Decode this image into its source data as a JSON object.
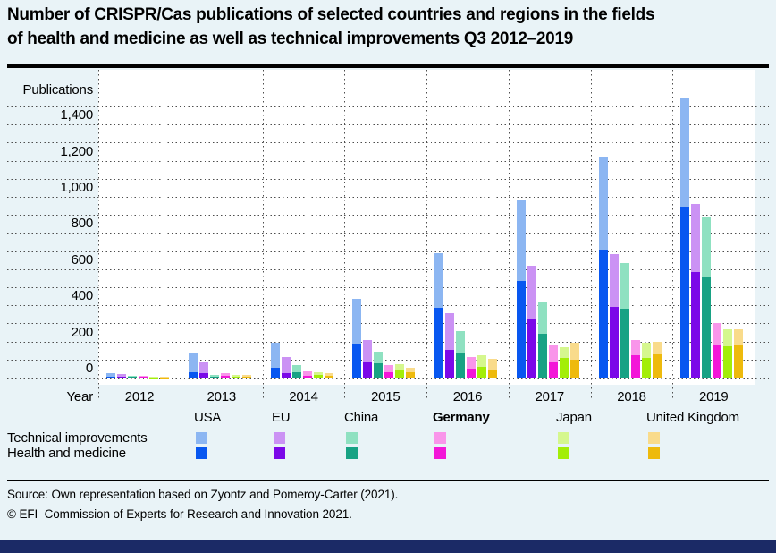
{
  "header": {
    "title_line1": "Number of CRISPR/Cas publications of selected countries and regions in the fields",
    "title_line2": "of health and medicine as well as technical improvements Q3 2012–2019"
  },
  "chart_data": {
    "type": "bar",
    "stacked": true,
    "title": "Number of CRISPR/Cas publications of selected countries and regions in the fields of health and medicine as well as technical improvements Q3 2012–2019",
    "xlabel": "Year",
    "ylabel": "Publications",
    "ylim": [
      0,
      1500
    ],
    "grid_interval": 100,
    "ytick_interval": 200,
    "grid": "dotted",
    "ytick_labels": [
      "0",
      "200",
      "400",
      "600",
      "800",
      "1,000",
      "1,200",
      "1,400"
    ],
    "categories": [
      "2012",
      "2013",
      "2014",
      "2015",
      "2016",
      "2017",
      "2018",
      "2019"
    ],
    "series_labels": {
      "technical": "Technical improvements",
      "health": "Health and medicine"
    },
    "groups": [
      {
        "name": "USA",
        "bold": false,
        "tech_color": "#8cb6f2",
        "health_color": "#0857f0",
        "health": [
          7,
          30,
          55,
          190,
          385,
          535,
          710,
          945
        ],
        "technical": [
          20,
          105,
          140,
          245,
          305,
          445,
          515,
          600
        ]
      },
      {
        "name": "EU",
        "bold": false,
        "tech_color": "#cb92f4",
        "health_color": "#7b08e8",
        "health": [
          4,
          23,
          25,
          87,
          155,
          325,
          390,
          585
        ],
        "technical": [
          18,
          61,
          87,
          120,
          200,
          295,
          295,
          375
        ]
      },
      {
        "name": "China",
        "bold": false,
        "tech_color": "#8fe1c1",
        "health_color": "#18a284",
        "health": [
          3,
          6,
          28,
          80,
          135,
          245,
          380,
          555
        ],
        "technical": [
          7,
          10,
          42,
          66,
          120,
          175,
          255,
          330
        ]
      },
      {
        "name": "Germany",
        "bold": true,
        "tech_color": "#f995ea",
        "health_color": "#f316d8",
        "health": [
          3,
          8,
          8,
          31,
          50,
          90,
          123,
          180
        ],
        "technical": [
          7,
          19,
          25,
          39,
          65,
          92,
          87,
          120
        ]
      },
      {
        "name": "Japan",
        "bold": false,
        "tech_color": "#d5f78e",
        "health_color": "#a3ee08",
        "health": [
          2,
          6,
          13,
          39,
          60,
          110,
          110,
          172
        ],
        "technical": [
          3,
          10,
          15,
          36,
          63,
          56,
          83,
          94
        ]
      },
      {
        "name": "United Kingdom",
        "bold": false,
        "tech_color": "#f9db8b",
        "health_color": "#eeba0c",
        "health": [
          2,
          6,
          12,
          28,
          44,
          100,
          130,
          177
        ],
        "technical": [
          3,
          10,
          13,
          28,
          58,
          95,
          70,
          89
        ]
      }
    ]
  },
  "source": {
    "line1": "Source: Own representation based on Zyontz and Pomeroy-Carter (2021).",
    "line2": "© EFI–Commission of Experts for Research and Innovation 2021."
  }
}
